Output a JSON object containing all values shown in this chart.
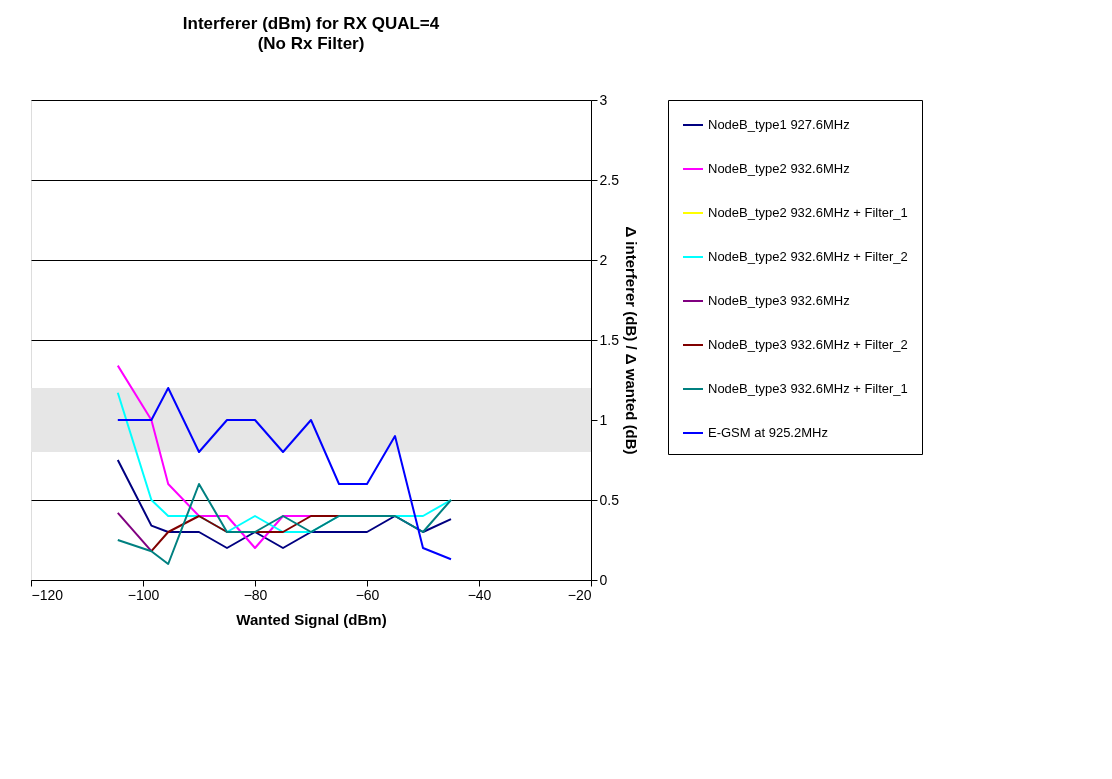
{
  "chart_data": {
    "type": "line",
    "title": "Interferer (dBm) for RX QUAL=4",
    "subtitle": "(No Rx Filter)",
    "xlabel": "Wanted Signal (dBm)",
    "ylabel": "Δ interferer (dB) /  Δ wanted (dB)",
    "x": [
      -104.5,
      -98.5,
      -95.5,
      -90,
      -85,
      -80,
      -75,
      -70,
      -65,
      -60,
      -55,
      -50,
      -45
    ],
    "series": [
      {
        "name": "NodeB_type1 927.6MHz",
        "color": "#000080",
        "values": [
          0.75,
          0.34,
          0.3,
          0.3,
          0.2,
          0.3,
          0.2,
          0.3,
          0.3,
          0.3,
          0.4,
          0.3,
          0.38
        ]
      },
      {
        "name": "NodeB_type2 932.6MHz",
        "color": "#ff00ff",
        "values": [
          1.34,
          1.0,
          0.6,
          0.4,
          0.4,
          0.2,
          0.4,
          0.4,
          null,
          null,
          null,
          null,
          null
        ]
      },
      {
        "name": "NodeB_type2 932.6MHz + Filter_1",
        "color": "#ffff00",
        "values": [
          null,
          null,
          null,
          null,
          null,
          null,
          null,
          null,
          null,
          null,
          null,
          null,
          null
        ]
      },
      {
        "name": "NodeB_type2 932.6MHz + Filter_2",
        "color": "#00ffff",
        "values": [
          1.17,
          0.5,
          0.4,
          0.4,
          0.3,
          0.4,
          0.3,
          0.3,
          0.4,
          0.4,
          0.4,
          0.4,
          0.5
        ]
      },
      {
        "name": "NodeB_type3 932.6MHz",
        "color": "#800080",
        "values": [
          0.42,
          0.18,
          null,
          null,
          null,
          null,
          null,
          null,
          null,
          null,
          null,
          null,
          null
        ]
      },
      {
        "name": "NodeB_type3 932.6MHz + Filter_2",
        "color": "#800000",
        "values": [
          null,
          0.18,
          0.3,
          0.4,
          0.3,
          0.3,
          0.3,
          0.4,
          0.4,
          null,
          null,
          null,
          null
        ]
      },
      {
        "name": "NodeB_type3 932.6MHz + Filter_1",
        "color": "#008080",
        "values": [
          0.25,
          0.18,
          0.1,
          0.6,
          0.3,
          0.3,
          0.4,
          0.3,
          0.4,
          0.4,
          0.4,
          0.3,
          0.5
        ]
      },
      {
        "name": "E-GSM at 925.2MHz",
        "color": "#0000ff",
        "values": [
          1.0,
          1.0,
          1.2,
          0.8,
          1.0,
          1.0,
          0.8,
          1.0,
          0.6,
          0.6,
          0.9,
          0.2,
          0.13
        ]
      }
    ],
    "xlim": [
      -120,
      -20
    ],
    "xticks": [
      -120,
      -100,
      -80,
      -60,
      -40,
      -20
    ],
    "ylim": [
      0,
      3
    ],
    "yticks": [
      0,
      0.5,
      1,
      1.5,
      2,
      2.5,
      3
    ],
    "bands": [
      {
        "axis": "y",
        "from": 0.8,
        "to": 1.2,
        "color": "#e6e6e6"
      }
    ],
    "grid": "y",
    "legend": "right",
    "marker": "none",
    "line_style": "solid"
  }
}
